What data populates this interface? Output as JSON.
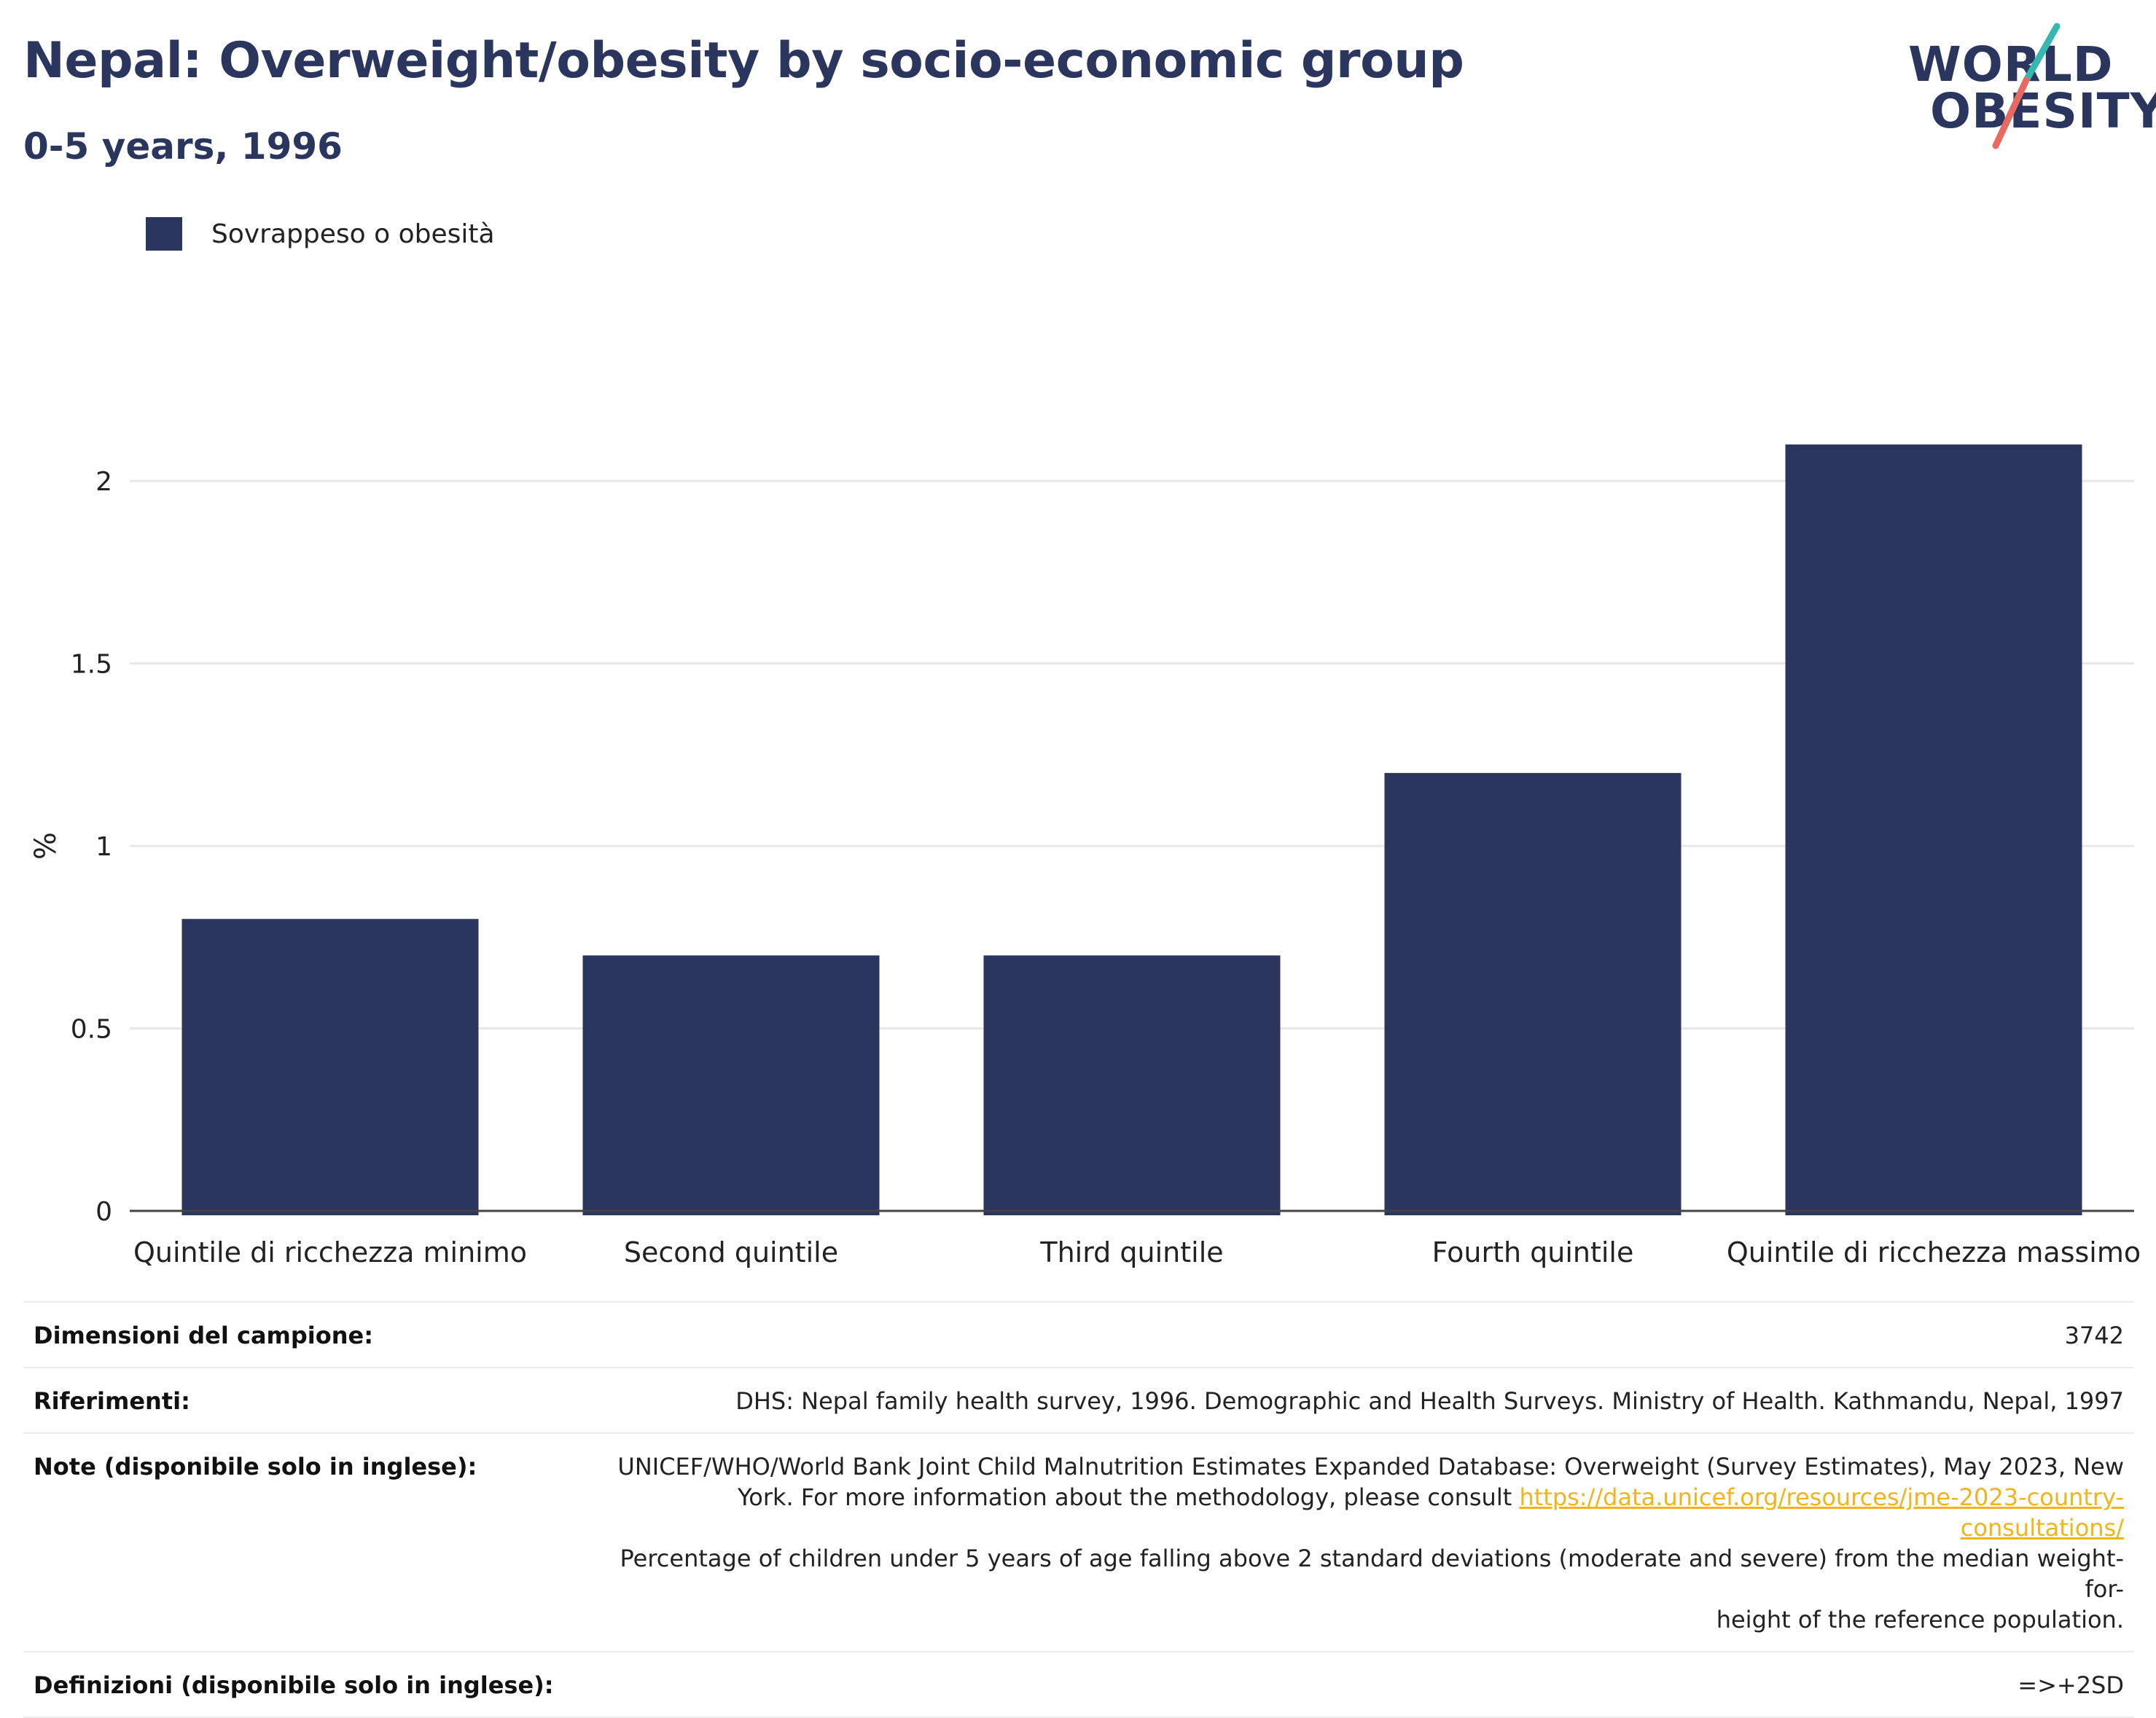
{
  "header": {
    "title": "Nepal: Overweight/obesity by socio-economic group",
    "subtitle": "0-5 years, 1996"
  },
  "logo": {
    "line1": "WORLD",
    "line2": "OBESITY",
    "colors": {
      "navy": "#2b365f",
      "teal": "#35b8b0",
      "coral": "#e8695f"
    }
  },
  "legend": {
    "label": "Sovrappeso o obesità",
    "color": "#2b365f"
  },
  "chart_data": {
    "type": "bar",
    "categories": [
      "Quintile di ricchezza minimo",
      "Second quintile",
      "Third quintile",
      "Fourth quintile",
      "Quintile di ricchezza massimo"
    ],
    "series": [
      {
        "name": "Sovrappeso o obesità",
        "values": [
          0.8,
          0.7,
          0.7,
          1.2,
          2.1
        ],
        "color": "#2b365f"
      }
    ],
    "ylabel": "%",
    "ylim": [
      0,
      2.2
    ],
    "yticks": [
      0,
      0.5,
      1,
      1.5,
      2
    ],
    "ytick_labels": [
      "0",
      "0.5",
      "1",
      "1.5",
      "2"
    ],
    "grid": true,
    "legend_position": "top-left"
  },
  "info": {
    "sample_label": "Dimensioni del campione:",
    "sample_value": "3742",
    "references_label": "Riferimenti:",
    "references_value": "DHS: Nepal family health survey, 1996. Demographic and Health Surveys. Ministry of Health. Kathmandu, Nepal, 1997",
    "notes_label": "Note (disponibile solo in inglese):",
    "notes_line1": "UNICEF/WHO/World Bank Joint Child Malnutrition Estimates Expanded Database: Overweight (Survey Estimates), May 2023, New",
    "notes_line2_pre": "York. For more information about the methodology, please consult ",
    "notes_link": "https://data.unicef.org/resources/jme-2023-country-consultations/",
    "notes_line3": "Percentage of children under 5 years of age falling above 2 standard deviations (moderate and severe) from the median weight-for-",
    "notes_line4": "height of the reference population.",
    "definitions_label": "Definizioni (disponibile solo in inglese):",
    "definitions_value": "=>+2SD"
  }
}
